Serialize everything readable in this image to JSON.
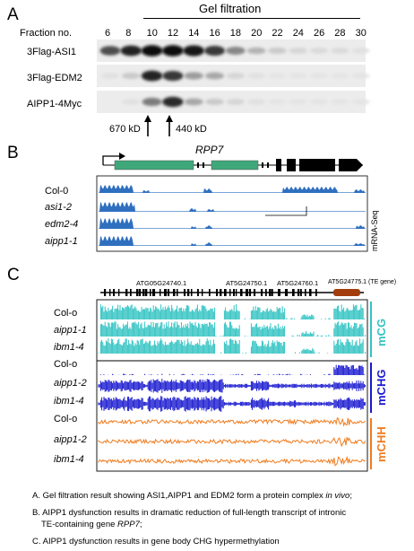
{
  "panelA": {
    "letter": "A",
    "title": "Gel filtration",
    "fraction_label": "Fraction no.",
    "fractions": [
      "6",
      "8",
      "10",
      "12",
      "14",
      "16",
      "18",
      "20",
      "22",
      "24",
      "26",
      "28",
      "30"
    ],
    "rows": [
      {
        "label": "3Flag-ASI1",
        "intensities": [
          0.7,
          0.9,
          1.0,
          1.0,
          0.95,
          0.8,
          0.45,
          0.25,
          0.15,
          0.1,
          0.08,
          0.08,
          0.05
        ]
      },
      {
        "label": "3Flag-EDM2",
        "intensities": [
          0.05,
          0.15,
          0.9,
          0.8,
          0.35,
          0.3,
          0.1,
          0.05,
          0.03,
          0.03,
          0.03,
          0.03,
          0.03
        ]
      },
      {
        "label": "AIPP1-4Myc",
        "intensities": [
          0.0,
          0.05,
          0.5,
          0.85,
          0.3,
          0.15,
          0.1,
          0.05,
          0.03,
          0.03,
          0.03,
          0.03,
          0.03
        ]
      }
    ],
    "markers": [
      "670 kD",
      "440 kD"
    ]
  },
  "panelB": {
    "letter": "B",
    "gene": "RPP7",
    "side_label": "mRNA-Seq",
    "tracks": [
      {
        "label": "Col-0"
      },
      {
        "label": "asi1-2"
      },
      {
        "label": "edm2-4"
      },
      {
        "label": "aipp1-1"
      }
    ],
    "colors": {
      "track": "#2f6fbf",
      "exon": "#3fa87a"
    }
  },
  "panelC": {
    "letter": "C",
    "genes": [
      "ATG05G24740.1",
      "AT5G24750.1",
      "AT5G24760.1",
      "AT5G24775.1 (TE gene)"
    ],
    "groups": [
      {
        "name": "mCG",
        "color": "#33c3c3",
        "labels": [
          "Col-o",
          "aipp1-1",
          "ibm1-4"
        ]
      },
      {
        "name": "mCHG",
        "color": "#1a1ad0",
        "labels": [
          "Col-o",
          "aipp1-2",
          "ibm1-4"
        ]
      },
      {
        "name": "mCHH",
        "color": "#f07b1d",
        "labels": [
          "Col-o",
          "aipp1-2",
          "ibm1-4"
        ]
      }
    ]
  },
  "legend": {
    "a": "A. Gel filtration result showing ASI1,AIPP1 and EDM2 form a protein complex",
    "a_em": "in vivo",
    "a_end": ";",
    "b1": "B. AIPP1 dysfunction results in dramatic reduction of full-length transcript of intronic",
    "b2": "TE-containing gene",
    "b2_em": "RPP7",
    "b2_end": ";",
    "c": "C. AIPP1 dysfunction results in gene body CHG hypermethylation"
  }
}
